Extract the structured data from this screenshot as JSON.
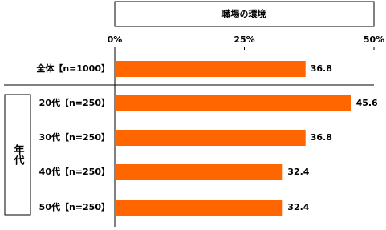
{
  "chart_data": {
    "type": "hbar",
    "title": "職場の環境",
    "categories": [
      "全体【n=1000】",
      "20代【n=250】",
      "30代【n=250】",
      "40代【n=250】",
      "50代【n=250】"
    ],
    "values": [
      36.8,
      45.6,
      36.8,
      32.4,
      32.4
    ],
    "color": "#ff6600",
    "group_label": "年代",
    "xlim": [
      0,
      50
    ],
    "xticks": [
      {
        "value": 0,
        "label": "0%"
      },
      {
        "value": 25,
        "label": "25%"
      },
      {
        "value": 50,
        "label": "50%"
      }
    ]
  }
}
